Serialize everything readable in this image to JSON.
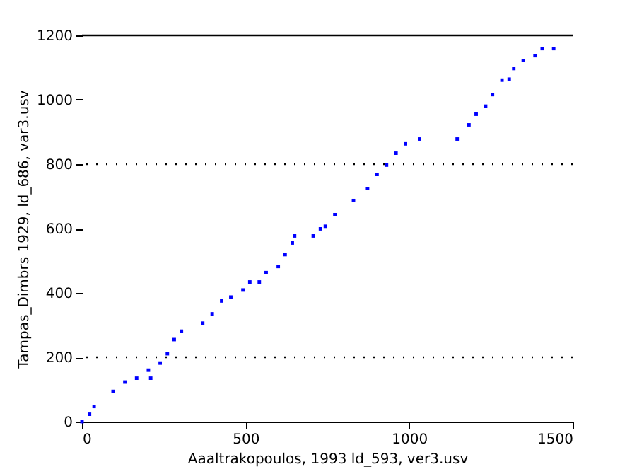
{
  "chart_data": {
    "type": "scatter",
    "xlabel": "Aaaltrakopoulos, 1993 ld_593, ver3.usv",
    "ylabel": "Tampas_Dimbrs 1929, ld_686, var3.usv",
    "x": [
      0,
      23,
      37,
      95,
      131,
      167,
      210,
      203,
      239,
      261,
      282,
      304,
      369,
      398,
      427,
      455,
      492,
      513,
      542,
      563,
      600,
      621,
      643,
      650,
      707,
      729,
      744,
      773,
      830,
      873,
      902,
      931,
      960,
      989,
      1032,
      1147,
      1183,
      1205,
      1234,
      1255,
      1284,
      1306,
      1320,
      1349,
      1385,
      1407,
      1442
    ],
    "series": [
      {
        "color": "#0000ff",
        "values": [
          0,
          23,
          47,
          94,
          123,
          135,
          135,
          160,
          182,
          211,
          255,
          281,
          306,
          335,
          375,
          387,
          409,
          434,
          434,
          463,
          482,
          519,
          555,
          577,
          577,
          599,
          607,
          643,
          687,
          724,
          768,
          797,
          834,
          863,
          878,
          878,
          922,
          955,
          980,
          1016,
          1061,
          1064,
          1097,
          1122,
          1137,
          1159,
          1159
        ]
      }
    ],
    "xlim": [
      0,
      1500
    ],
    "xticks": [
      0,
      500,
      1000,
      1500
    ],
    "ylim": [
      0,
      1200
    ],
    "yticks": [
      0,
      200,
      400,
      600,
      800,
      1000,
      1200
    ],
    "marker": "square",
    "grid": false,
    "ref_lines": [
      {
        "axis": "y",
        "value": 200,
        "line_style": "dotted"
      },
      {
        "axis": "y",
        "value": 800,
        "line_style": "dotted"
      },
      {
        "axis": "y",
        "value": 1200,
        "line_style": "solid"
      }
    ]
  }
}
